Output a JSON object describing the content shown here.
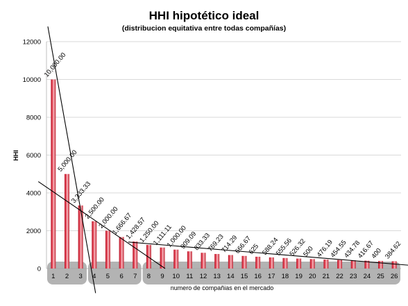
{
  "chart_data": {
    "type": "bar",
    "title": "HHI hipotético ideal",
    "subtitle": "(distribucion equitativa entre todas compañías)",
    "xlabel": "numero de compañias en el mercado",
    "ylabel": "HHI",
    "ylim": [
      0,
      12000
    ],
    "yticks": [
      0,
      2000,
      4000,
      6000,
      8000,
      10000,
      12000
    ],
    "grid": true,
    "legend": "none",
    "categories": [
      "1",
      "2",
      "3",
      "4",
      "5",
      "6",
      "7",
      "8",
      "9",
      "10",
      "11",
      "12",
      "13",
      "14",
      "15",
      "16",
      "17",
      "18",
      "19",
      "20",
      "21",
      "22",
      "23",
      "24",
      "25",
      "26"
    ],
    "values": [
      10000,
      5000,
      3333.33,
      2500,
      2000,
      1666.67,
      1428.57,
      1250,
      1111.11,
      1000,
      909.09,
      833.33,
      769.23,
      714.29,
      666.67,
      625,
      588.24,
      555.56,
      526.32,
      500,
      476.19,
      454.55,
      434.78,
      416.67,
      400,
      384.62
    ],
    "data_labels": [
      "10,000.00",
      "5,000.00",
      "3,333.33",
      "2,500.00",
      "2,000.00",
      "1,666.67",
      "1,428.57",
      "1,250.00",
      "1,111.11",
      "1,000.00",
      "909.09",
      "833.33",
      "769.23",
      "714.29",
      "666.67",
      "625",
      "588.24",
      "555.56",
      "526.32",
      "500",
      "476.19",
      "454.55",
      "434.78",
      "416.67",
      "400",
      "384.62"
    ],
    "groups": [
      [
        1,
        3
      ],
      [
        4,
        7
      ],
      [
        8,
        26
      ]
    ],
    "trend_lines": [
      {
        "x": [
          0.6,
          4.1
        ],
        "y": [
          12800,
          -1300
        ]
      },
      {
        "x": [
          -0.1,
          9.2
        ],
        "y": [
          4600,
          0
        ]
      },
      {
        "x": [
          6.5,
          27.5
        ],
        "y": [
          1400,
          150
        ]
      }
    ],
    "colors": {
      "bar_dark": "#b8172a",
      "bar_light": "#f7b9c0",
      "grid": "#d9d9d9",
      "group_fill": "#a6a6a6",
      "trend_line": "#000000",
      "text": "#000000"
    }
  }
}
